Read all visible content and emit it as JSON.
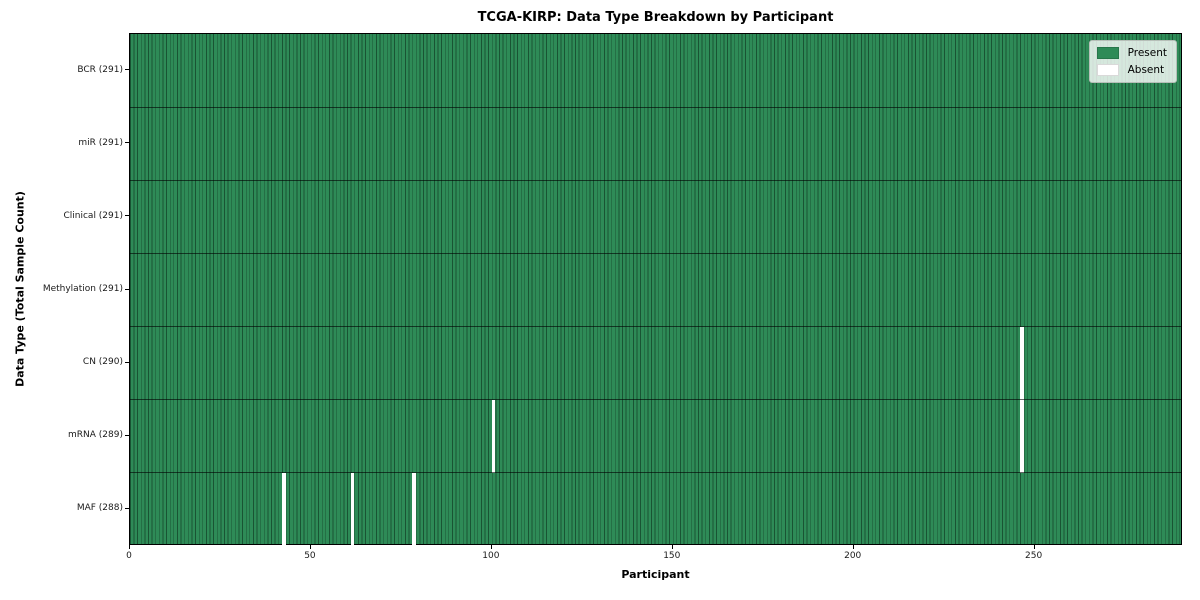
{
  "chart_data": {
    "type": "heatmap",
    "title": "TCGA-KIRP: Data Type Breakdown by Participant",
    "xlabel": "Participant",
    "ylabel": "Data Type (Total Sample Count)",
    "n_participants": 291,
    "x_ticks": [
      0,
      50,
      100,
      150,
      200,
      250
    ],
    "rows": [
      {
        "label": "BCR (291)",
        "data_type": "BCR",
        "present_count": 291,
        "absent_participants": []
      },
      {
        "label": "miR (291)",
        "data_type": "miR",
        "present_count": 291,
        "absent_participants": []
      },
      {
        "label": "Clinical (291)",
        "data_type": "Clinical",
        "present_count": 291,
        "absent_participants": []
      },
      {
        "label": "Methylation (291)",
        "data_type": "Methylation",
        "present_count": 291,
        "absent_participants": []
      },
      {
        "label": "CN (290)",
        "data_type": "CN",
        "present_count": 290,
        "absent_participants": [
          246
        ]
      },
      {
        "label": "mRNA (289)",
        "data_type": "mRNA",
        "present_count": 289,
        "absent_participants": [
          100,
          246
        ]
      },
      {
        "label": "MAF (288)",
        "data_type": "MAF",
        "present_count": 288,
        "absent_participants": [
          42,
          61,
          78
        ]
      }
    ],
    "legend": {
      "position": "upper right",
      "items": [
        {
          "label": "Present",
          "color": "#2e8b57"
        },
        {
          "label": "Absent",
          "color": "#ffffff"
        }
      ]
    },
    "colors": {
      "present": "#2e8b57",
      "absent": "#ffffff",
      "cell_edge": "#1a4d30",
      "axes_edge": "#000000"
    },
    "grid": "cell-edges",
    "x_range": [
      0,
      291
    ],
    "row_count": 7
  }
}
